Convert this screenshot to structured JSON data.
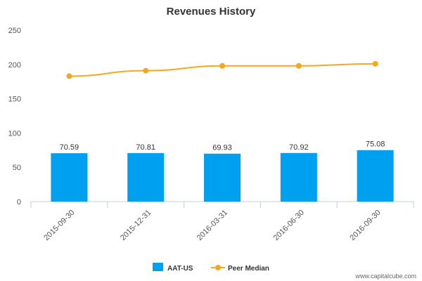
{
  "chart_data": {
    "type": "bar",
    "title": "Revenues History",
    "categories": [
      "2015-09-30",
      "2015-12-31",
      "2016-03-31",
      "2016-06-30",
      "2016-09-30"
    ],
    "series": [
      {
        "name": "AAT-US",
        "kind": "bar",
        "color": "#00A0F0",
        "values": [
          70.59,
          70.81,
          69.93,
          70.92,
          75.08
        ],
        "labels": [
          "70.59",
          "70.81",
          "69.93",
          "70.92",
          "75.08"
        ]
      },
      {
        "name": "Peer Median",
        "kind": "line",
        "color": "#F5A623",
        "values": [
          183,
          191,
          198,
          198,
          201
        ]
      }
    ],
    "yticks": [
      0,
      50,
      100,
      150,
      200,
      250
    ],
    "ylim": [
      0,
      250
    ],
    "grid": false,
    "legend": "bottom-center"
  },
  "watermark": "www.capitalcube.com"
}
